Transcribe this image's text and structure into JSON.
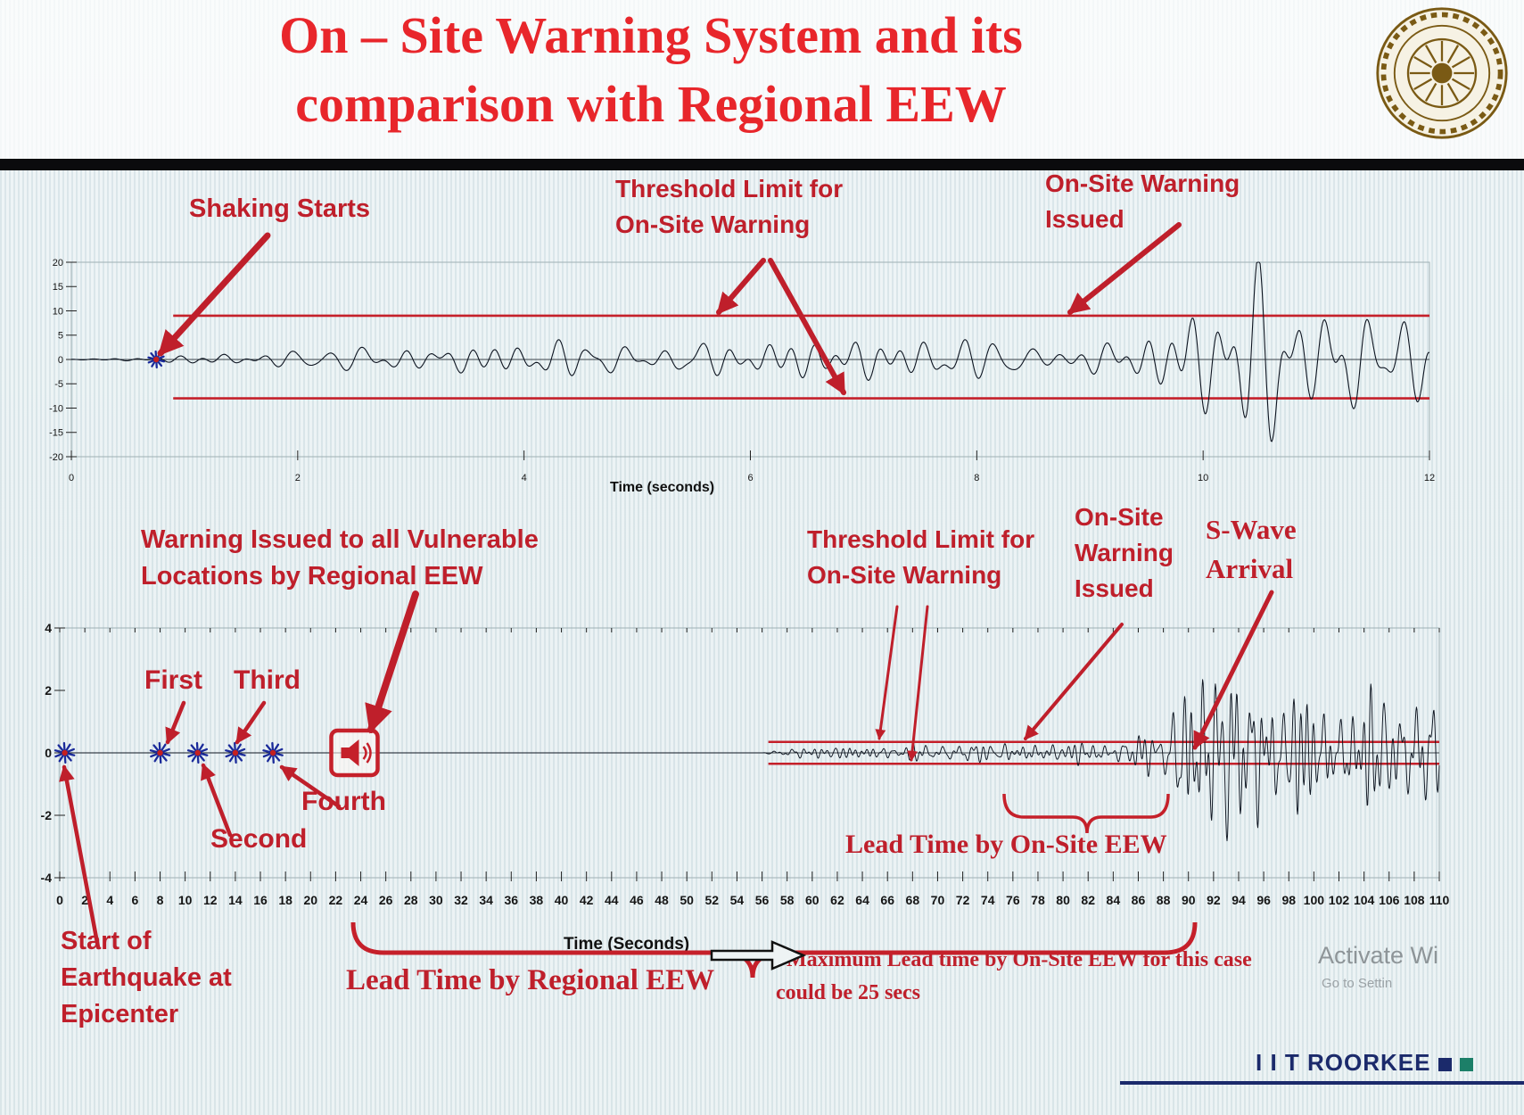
{
  "slide": {
    "title_line1": "On – Site Warning System and its",
    "title_line2": "comparison with Regional EEW",
    "footer_brand": "I I T ROORKEE",
    "watermark_line1": "Activate Wi",
    "watermark_line2": "Go to Settin"
  },
  "annotations": {
    "shaking_starts": "Shaking Starts",
    "threshold_top_l1": "Threshold Limit for",
    "threshold_top_l2": "On-Site Warning",
    "onsite_top_l1": "On-Site Warning",
    "onsite_top_l2": "Issued",
    "regional_l1": "Warning Issued to all Vulnerable",
    "regional_l2": "Locations by Regional EEW",
    "first": "First",
    "second": "Second",
    "third": "Third",
    "fourth": "Fourth",
    "threshold_bottom_l1": "Threshold Limit for",
    "threshold_bottom_l2": "On-Site Warning",
    "onsite_bottom_l1": "On-Site",
    "onsite_bottom_l2": "Warning",
    "onsite_bottom_l3": "Issued",
    "swave_l1": "S-Wave",
    "swave_l2": "Arrival",
    "lead_onsite": "Lead Time by On-Site EEW",
    "lead_regional": "Lead Time by Regional EEW",
    "max_note_l1": "*Maximum Lead time by On-Site EEW for this case",
    "max_note_l2": "could be 25 secs",
    "start_l1": "Start of",
    "start_l2": "Earthquake at",
    "start_l3": "Epicenter"
  },
  "colors": {
    "accent_red": "#bf1f2b",
    "title_red": "#e8262b",
    "wave": "#0d1420",
    "threshold": "#c5202a",
    "marker_blue": "#1a2a9a",
    "marker_center": "#c5201f",
    "brand_navy": "#1b2a6b",
    "brand_green": "#1c7f68"
  },
  "chart_data": [
    {
      "id": "top-seismogram",
      "type": "line",
      "title": "",
      "xlabel": "Time (seconds)",
      "ylabel": "",
      "xlim": [
        0,
        12
      ],
      "ylim": [
        -20,
        20
      ],
      "xticks": [
        0,
        2,
        4,
        6,
        8,
        10,
        12
      ],
      "yticks": [
        20,
        15,
        10,
        5,
        0,
        -5,
        -10,
        -15,
        -20
      ],
      "grid": false,
      "threshold": {
        "upper": 9,
        "lower": -8,
        "x_start": 0.9,
        "x_end": 12
      },
      "events": {
        "shaking_start_x": 0.75,
        "onsite_warning_issued_x": 9.4
      },
      "wave": {
        "seed": 7,
        "components": 7,
        "freq_min": 1.6,
        "freq_max": 6.5,
        "points": 1500,
        "envelope": [
          [
            0,
            0.05
          ],
          [
            0.7,
            0.4
          ],
          [
            1.1,
            1.0
          ],
          [
            2.0,
            1.6
          ],
          [
            2.5,
            3.8
          ],
          [
            3.2,
            3.2
          ],
          [
            4.0,
            3.9
          ],
          [
            5.0,
            3.4
          ],
          [
            6.0,
            4.4
          ],
          [
            7.0,
            3.6
          ],
          [
            8.0,
            4.2
          ],
          [
            8.8,
            4.0
          ],
          [
            9.3,
            5.5
          ],
          [
            9.8,
            8.5
          ],
          [
            10.2,
            13
          ],
          [
            10.6,
            17
          ],
          [
            11.0,
            12
          ],
          [
            11.4,
            16
          ],
          [
            11.8,
            13
          ],
          [
            12,
            15
          ]
        ]
      }
    },
    {
      "id": "bottom-seismogram",
      "type": "line",
      "title": "",
      "xlabel": "Time (Seconds)",
      "ylabel": "",
      "xlim": [
        0,
        110
      ],
      "ylim": [
        -4,
        4
      ],
      "xticks": [
        0,
        2,
        4,
        6,
        8,
        10,
        12,
        14,
        16,
        18,
        20,
        22,
        24,
        26,
        28,
        30,
        32,
        34,
        36,
        38,
        40,
        42,
        44,
        46,
        48,
        50,
        52,
        54,
        56,
        58,
        60,
        62,
        64,
        66,
        68,
        70,
        72,
        74,
        76,
        78,
        80,
        82,
        84,
        86,
        88,
        90,
        92,
        94,
        96,
        98,
        100,
        102,
        104,
        106,
        108,
        110
      ],
      "yticks": [
        4,
        2,
        0,
        -2,
        -4
      ],
      "grid": false,
      "threshold": {
        "upper": 0.35,
        "lower": -0.35,
        "x_start": 56.5,
        "x_end": 110
      },
      "p_wave_markers": [
        {
          "x": 0.4,
          "label": "Start of Earthquake at Epicenter"
        },
        {
          "x": 8,
          "label": "First"
        },
        {
          "x": 11,
          "label": "Second"
        },
        {
          "x": 14,
          "label": "Third"
        },
        {
          "x": 17,
          "label": "Fourth"
        }
      ],
      "regional_warning_icon_x": 23.5,
      "events": {
        "onsite_warning_issued_x": 79,
        "s_wave_arrival_x": 92,
        "max_lead_time_secs": 25
      },
      "wave": {
        "seed": 13,
        "components": 9,
        "freq_min": 0.6,
        "freq_max": 2.4,
        "points": 2600,
        "envelope": [
          [
            0,
            0
          ],
          [
            56,
            0
          ],
          [
            57.5,
            0.12
          ],
          [
            60,
            0.22
          ],
          [
            64,
            0.28
          ],
          [
            70,
            0.3
          ],
          [
            76,
            0.32
          ],
          [
            80,
            0.38
          ],
          [
            84,
            0.45
          ],
          [
            87,
            0.7
          ],
          [
            88.5,
            1.4
          ],
          [
            90,
            3.1
          ],
          [
            91.5,
            2.4
          ],
          [
            93,
            3.4
          ],
          [
            95,
            2.3
          ],
          [
            97,
            3.0
          ],
          [
            99,
            2.1
          ],
          [
            101,
            2.6
          ],
          [
            103,
            1.9
          ],
          [
            105,
            2.2
          ],
          [
            107,
            1.6
          ],
          [
            110,
            1.9
          ]
        ]
      }
    }
  ]
}
